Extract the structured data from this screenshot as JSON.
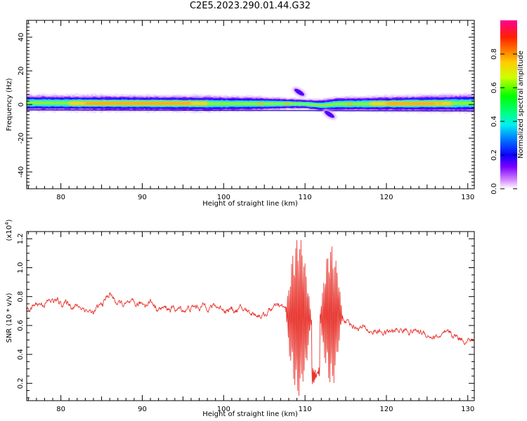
{
  "title": "C2E5.2023.290.01.44.G32",
  "chart_data": [
    {
      "type": "heatmap",
      "xlabel": "Height of straight line (km)",
      "ylabel": "Frequency (Hz)",
      "xlim": [
        75.8,
        130.8
      ],
      "ylim": [
        -50,
        50
      ],
      "xticks": [
        80,
        90,
        100,
        110,
        120,
        130
      ],
      "yticks": [
        -40,
        -20,
        0,
        20,
        40
      ],
      "band": {
        "center_hz": [
          [
            75.8,
            1.0
          ],
          [
            100,
            0.5
          ],
          [
            108,
            0.5
          ],
          [
            110,
            0.3
          ],
          [
            112,
            -0.5
          ],
          [
            114,
            0.3
          ],
          [
            130.8,
            0.8
          ]
        ],
        "halfwidth_hz": [
          [
            75.8,
            4.0
          ],
          [
            98,
            4.0
          ],
          [
            104,
            3.5
          ],
          [
            110,
            2.5
          ],
          [
            114,
            3.5
          ],
          [
            130.8,
            4.5
          ]
        ]
      },
      "blobs": [
        {
          "x": 109.3,
          "y": 7.3,
          "amplitude": 0.35
        },
        {
          "x": 113.0,
          "y": -5.8,
          "amplitude": 0.35
        }
      ],
      "high_amplitude_segments": [
        [
          81,
          98
        ],
        [
          118,
          128
        ]
      ],
      "colorbar": {
        "label": "Normalized spectral amplitude",
        "ticks": [
          "0.0",
          "0.2",
          "0.4",
          "0.6",
          "0.8"
        ],
        "range": [
          0,
          1
        ]
      }
    },
    {
      "type": "line",
      "xlabel": "Height of straight line (km)",
      "ylabel": "SNR (10 * v/v)",
      "yscale_label": "(x10",
      "yscale_exponent": "4",
      "xlim": [
        75.8,
        130.8
      ],
      "ylim": [
        0.08,
        1.25
      ],
      "yunit": "x10^4",
      "xticks": [
        80,
        90,
        100,
        110,
        120,
        130
      ],
      "yticks": [
        "0.2",
        "0.4",
        "0.6",
        "0.8",
        "1.0",
        "1.2"
      ],
      "color": "#e8352e",
      "series": [
        {
          "trend": [
            [
              75.8,
              0.7
            ],
            [
              77,
              0.75
            ],
            [
              79,
              0.77
            ],
            [
              81,
              0.75
            ],
            [
              83,
              0.72
            ],
            [
              84,
              0.68
            ],
            [
              85,
              0.74
            ],
            [
              86,
              0.82
            ],
            [
              87,
              0.75
            ],
            [
              89,
              0.73
            ],
            [
              91,
              0.77
            ],
            [
              92,
              0.72
            ],
            [
              95,
              0.71
            ],
            [
              98,
              0.74
            ],
            [
              100,
              0.72
            ],
            [
              103,
              0.7
            ],
            [
              105,
              0.67
            ],
            [
              106,
              0.72
            ],
            [
              107,
              0.72
            ],
            [
              130.8,
              0.5
            ]
          ],
          "post_burst": [
            [
              114.5,
              0.66
            ],
            [
              116,
              0.6
            ],
            [
              118,
              0.56
            ],
            [
              120,
              0.55
            ],
            [
              122,
              0.57
            ],
            [
              124,
              0.56
            ],
            [
              126,
              0.52
            ],
            [
              128,
              0.53
            ],
            [
              130.8,
              0.49
            ]
          ],
          "bursts": [
            {
              "from": 107.6,
              "to": 110.8,
              "amplitude": 0.55
            },
            {
              "from": 111.8,
              "to": 114.6,
              "amplitude": 0.48
            }
          ]
        }
      ]
    }
  ]
}
